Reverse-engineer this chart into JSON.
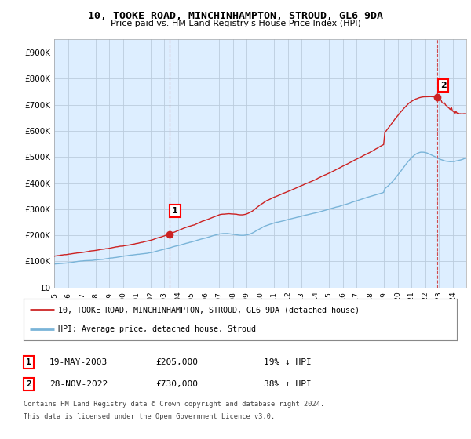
{
  "title": "10, TOOKE ROAD, MINCHINHAMPTON, STROUD, GL6 9DA",
  "subtitle": "Price paid vs. HM Land Registry's House Price Index (HPI)",
  "xlim_start": 1995.0,
  "xlim_end": 2025.0,
  "ylim_min": 0,
  "ylim_max": 950000,
  "yticks": [
    0,
    100000,
    200000,
    300000,
    400000,
    500000,
    600000,
    700000,
    800000,
    900000
  ],
  "ytick_labels": [
    "£0",
    "£100K",
    "£200K",
    "£300K",
    "£400K",
    "£500K",
    "£600K",
    "£700K",
    "£800K",
    "£900K"
  ],
  "hpi_color": "#7ab4d8",
  "price_color": "#cc2222",
  "chart_bg": "#ddeeff",
  "transaction1_x": 2003.38,
  "transaction1_y": 205000,
  "transaction2_x": 2022.91,
  "transaction2_y": 730000,
  "legend_line1": "10, TOOKE ROAD, MINCHINHAMPTON, STROUD, GL6 9DA (detached house)",
  "legend_line2": "HPI: Average price, detached house, Stroud",
  "table_row1": [
    "1",
    "19-MAY-2003",
    "£205,000",
    "19% ↓ HPI"
  ],
  "table_row2": [
    "2",
    "28-NOV-2022",
    "£730,000",
    "38% ↑ HPI"
  ],
  "footnote1": "Contains HM Land Registry data © Crown copyright and database right 2024.",
  "footnote2": "This data is licensed under the Open Government Licence v3.0.",
  "bg_color": "#ffffff",
  "grid_color": "#bbccdd"
}
